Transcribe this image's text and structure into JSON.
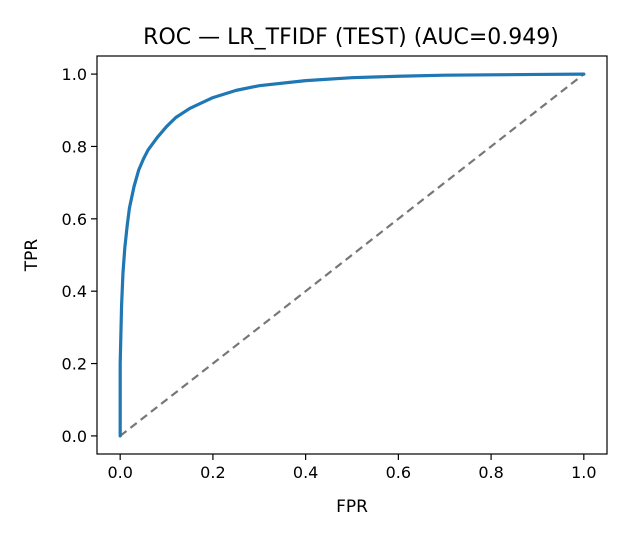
{
  "chart_data": {
    "type": "line",
    "title": "ROC — LR_TFIDF (TEST) (AUC=0.949)",
    "xlabel": "FPR",
    "ylabel": "TPR",
    "xlim": [
      -0.05,
      1.05
    ],
    "ylim": [
      -0.05,
      1.05
    ],
    "xticks": [
      0.0,
      0.2,
      0.4,
      0.6,
      0.8,
      1.0
    ],
    "yticks": [
      0.0,
      0.2,
      0.4,
      0.6,
      0.8,
      1.0
    ],
    "xtick_labels": [
      "0.0",
      "0.2",
      "0.4",
      "0.6",
      "0.8",
      "1.0"
    ],
    "ytick_labels": [
      "0.0",
      "0.2",
      "0.4",
      "0.6",
      "0.8",
      "1.0"
    ],
    "grid": false,
    "series": [
      {
        "color": "#1f77b4",
        "style": "solid",
        "x": [
          0.0,
          0.0,
          0.003,
          0.006,
          0.01,
          0.015,
          0.02,
          0.03,
          0.04,
          0.05,
          0.06,
          0.08,
          0.1,
          0.12,
          0.15,
          0.2,
          0.25,
          0.3,
          0.4,
          0.5,
          0.6,
          0.7,
          0.8,
          0.9,
          1.0
        ],
        "y": [
          0.0,
          0.2,
          0.36,
          0.45,
          0.52,
          0.58,
          0.63,
          0.69,
          0.735,
          0.765,
          0.79,
          0.825,
          0.855,
          0.88,
          0.905,
          0.935,
          0.955,
          0.968,
          0.982,
          0.99,
          0.994,
          0.997,
          0.998,
          0.999,
          1.0
        ]
      },
      {
        "color": "#777777",
        "style": "dashed",
        "x": [
          0.0,
          1.0
        ],
        "y": [
          0.0,
          1.0
        ]
      }
    ]
  }
}
